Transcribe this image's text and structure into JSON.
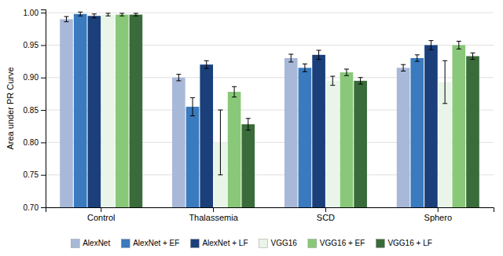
{
  "chart_data": {
    "type": "bar",
    "categories": [
      "Control",
      "Thalassemia",
      "SCD",
      "Sphero"
    ],
    "series": [
      {
        "name": "AlexNet",
        "color": "#a8b8d8",
        "values": [
          0.99,
          0.9,
          0.93,
          0.915
        ],
        "errors": [
          0.004,
          0.005,
          0.006,
          0.005
        ]
      },
      {
        "name": "AlexNet + EF",
        "color": "#3a7abf",
        "values": [
          0.998,
          0.855,
          0.915,
          0.93
        ],
        "errors": [
          0.003,
          0.014,
          0.006,
          0.005
        ]
      },
      {
        "name": "AlexNet + LF",
        "color": "#1a3f7a",
        "values": [
          0.995,
          0.92,
          0.935,
          0.95
        ],
        "errors": [
          0.003,
          0.006,
          0.007,
          0.007
        ]
      },
      {
        "name": "VGG16",
        "color": "#e8f5e8",
        "values": [
          0.997,
          0.8,
          0.895,
          0.893
        ],
        "errors": [
          0.002,
          0.05,
          0.007,
          0.033
        ]
      },
      {
        "name": "VGG16 + EF",
        "color": "#88c878",
        "values": [
          0.997,
          0.878,
          0.908,
          0.95
        ],
        "errors": [
          0.002,
          0.008,
          0.005,
          0.006
        ]
      },
      {
        "name": "VGG16 + LF",
        "color": "#3a6b3a",
        "values": [
          0.997,
          0.828,
          0.895,
          0.933
        ],
        "errors": [
          0.002,
          0.009,
          0.005,
          0.005
        ]
      }
    ],
    "ylabel": "Area under PR Curve",
    "ylim": [
      0.7,
      1.005
    ],
    "yticks": [
      {
        "value": 0.7,
        "label": "0.70"
      },
      0.75,
      {
        "value": 0.8,
        "label": "0.80"
      },
      0.85,
      {
        "value": 0.9,
        "label": "0.90"
      },
      0.95,
      {
        "value": 1.0,
        "label": "1.00"
      }
    ],
    "grid": true,
    "legend": "bottom"
  }
}
